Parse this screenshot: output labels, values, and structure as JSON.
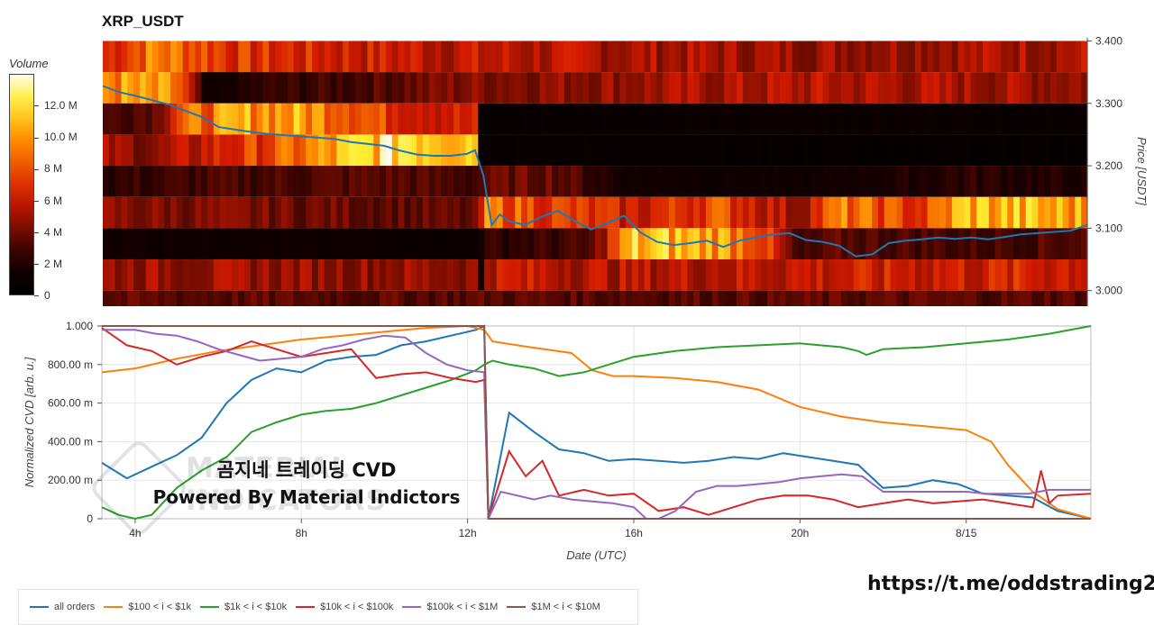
{
  "colors": {
    "all_orders": "#1f77b4",
    "b100_1k": "#ff7f0e",
    "b1k_10k": "#2ca02c",
    "b10k_100k": "#d62728",
    "b100k_1m": "#9467bd",
    "b1m_10m": "#8c564b",
    "heat_dark": "#1a0000",
    "heat_mid": "#d41a00",
    "heat_bright": "#ffee30"
  },
  "header": {
    "title": "XRP_USDT"
  },
  "colorbar": {
    "title": "Volume",
    "ticks": [
      "12.0 M",
      "10.0 M",
      "8 M",
      "6 M",
      "4 M",
      "2 M",
      "0"
    ],
    "tick_values": [
      12,
      10,
      8,
      6,
      4,
      2,
      0
    ],
    "max": 14
  },
  "chart_data": [
    {
      "type": "heatmap",
      "title": "XRP_USDT",
      "ylabel": "Price [USDT]",
      "y_ticks": [
        "3.400",
        "3.300",
        "3.200",
        "3.100",
        "3.000"
      ],
      "y_tick_values": [
        3.4,
        3.3,
        3.2,
        3.1,
        3.0
      ],
      "ylim": [
        2.975,
        3.405
      ],
      "xlim": [
        3.2,
        27.0
      ],
      "price_bins": [
        3.375,
        3.325,
        3.275,
        3.225,
        3.175,
        3.125,
        3.075,
        3.025,
        2.98
      ],
      "bin_edges": [
        3.4,
        3.35,
        3.3,
        3.25,
        3.2,
        3.15,
        3.1,
        3.05,
        3.0,
        2.975
      ],
      "volume_units": "M",
      "volume_by_bin_and_time": [
        {
          "bin": 3.375,
          "values": [
            [
              3.2,
              6.5
            ],
            [
              4.5,
              9.5
            ],
            [
              6.5,
              7.0
            ],
            [
              11.0,
              6.0
            ],
            [
              14.0,
              5.5
            ],
            [
              20.0,
              5.0
            ],
            [
              27.0,
              5.5
            ]
          ]
        },
        {
          "bin": 3.325,
          "values": [
            [
              3.2,
              10.0
            ],
            [
              5.0,
              9.0
            ],
            [
              5.7,
              1.0
            ],
            [
              7.0,
              2.5
            ],
            [
              9.0,
              3.0
            ],
            [
              12.0,
              4.5
            ],
            [
              16.0,
              5.0
            ],
            [
              20.0,
              5.5
            ],
            [
              27.0,
              5.0
            ]
          ]
        },
        {
          "bin": 3.275,
          "values": [
            [
              3.2,
              3.0
            ],
            [
              4.5,
              4.0
            ],
            [
              5.0,
              8.0
            ],
            [
              7.0,
              10.5
            ],
            [
              9.0,
              9.5
            ],
            [
              10.0,
              7.5
            ],
            [
              12.2,
              6.0
            ],
            [
              12.3,
              0.6
            ],
            [
              16.0,
              0.8
            ],
            [
              20.0,
              1.0
            ],
            [
              27.0,
              0.8
            ]
          ]
        },
        {
          "bin": 3.225,
          "values": [
            [
              3.2,
              5.0
            ],
            [
              4.5,
              4.5
            ],
            [
              6.0,
              6.5
            ],
            [
              7.5,
              8.0
            ],
            [
              9.0,
              10.5
            ],
            [
              10.5,
              13.0
            ],
            [
              12.2,
              12.0
            ],
            [
              12.3,
              0.8
            ],
            [
              16.0,
              0.6
            ],
            [
              20.0,
              0.5
            ],
            [
              27.0,
              0.5
            ]
          ]
        },
        {
          "bin": 3.175,
          "values": [
            [
              3.2,
              2.5
            ],
            [
              6.0,
              3.0
            ],
            [
              10.0,
              3.5
            ],
            [
              12.2,
              3.0
            ],
            [
              12.4,
              3.5
            ],
            [
              14.0,
              4.0
            ],
            [
              16.0,
              1.5
            ],
            [
              20.0,
              1.2
            ],
            [
              24.0,
              2.5
            ],
            [
              27.0,
              2.0
            ]
          ]
        },
        {
          "bin": 3.125,
          "values": [
            [
              3.2,
              4.5
            ],
            [
              8.0,
              4.0
            ],
            [
              12.2,
              3.5
            ],
            [
              12.5,
              9.0
            ],
            [
              14.0,
              7.5
            ],
            [
              16.0,
              6.0
            ],
            [
              18.0,
              8.0
            ],
            [
              20.0,
              5.0
            ],
            [
              21.0,
              9.0
            ],
            [
              23.0,
              7.0
            ],
            [
              24.0,
              11.0
            ],
            [
              27.0,
              10.0
            ]
          ]
        },
        {
          "bin": 3.075,
          "values": [
            [
              3.2,
              1.5
            ],
            [
              8.0,
              1.2
            ],
            [
              12.2,
              1.0
            ],
            [
              12.5,
              2.5
            ],
            [
              15.0,
              3.0
            ],
            [
              16.0,
              11.0
            ],
            [
              18.0,
              10.5
            ],
            [
              19.0,
              9.0
            ],
            [
              20.0,
              2.5
            ],
            [
              21.0,
              3.5
            ],
            [
              24.0,
              3.0
            ],
            [
              27.0,
              3.5
            ]
          ]
        },
        {
          "bin": 3.025,
          "values": [
            [
              3.2,
              5.0
            ],
            [
              12.2,
              4.8
            ],
            [
              12.3,
              0.5
            ],
            [
              12.5,
              6.0
            ],
            [
              16.0,
              5.5
            ],
            [
              20.0,
              6.0
            ],
            [
              27.0,
              6.5
            ]
          ]
        },
        {
          "bin": 2.98,
          "values": [
            [
              3.2,
              3.5
            ],
            [
              27.0,
              3.5
            ]
          ]
        }
      ],
      "price_series": {
        "name": "Price",
        "x": [
          3.2,
          3.6,
          4.0,
          4.4,
          4.8,
          5.2,
          5.6,
          6.0,
          6.4,
          6.8,
          7.2,
          7.6,
          8.0,
          8.4,
          8.8,
          9.2,
          9.6,
          10.0,
          10.4,
          10.8,
          11.2,
          11.6,
          12.0,
          12.2,
          12.4,
          12.6,
          12.8,
          13.0,
          13.4,
          13.8,
          14.2,
          14.6,
          15.0,
          15.4,
          15.8,
          16.2,
          16.6,
          17.0,
          17.4,
          17.8,
          18.2,
          18.6,
          19.0,
          19.4,
          19.8,
          20.2,
          20.6,
          21.0,
          21.4,
          21.8,
          22.2,
          22.6,
          23.0,
          23.4,
          23.8,
          24.2,
          24.6,
          25.0,
          25.4,
          25.8,
          26.2,
          26.6,
          27.0
        ],
        "y": [
          3.328,
          3.318,
          3.312,
          3.305,
          3.298,
          3.288,
          3.278,
          3.262,
          3.258,
          3.254,
          3.251,
          3.249,
          3.247,
          3.245,
          3.243,
          3.238,
          3.235,
          3.232,
          3.224,
          3.218,
          3.216,
          3.216,
          3.219,
          3.225,
          3.185,
          3.105,
          3.122,
          3.112,
          3.105,
          3.118,
          3.128,
          3.112,
          3.098,
          3.108,
          3.12,
          3.093,
          3.078,
          3.073,
          3.076,
          3.08,
          3.07,
          3.08,
          3.085,
          3.09,
          3.092,
          3.081,
          3.078,
          3.072,
          3.055,
          3.058,
          3.076,
          3.08,
          3.082,
          3.085,
          3.083,
          3.085,
          3.082,
          3.086,
          3.09,
          3.092,
          3.094,
          3.096,
          3.105
        ]
      }
    },
    {
      "type": "line",
      "xlabel": "Date (UTC)",
      "ylabel": "Normalized CVD [arb. u.]",
      "x_unit": "hours since 8/14 00:00 UTC",
      "x_ticks": [
        "4h",
        "8h",
        "12h",
        "16h",
        "20h",
        "8/15"
      ],
      "x_tick_values": [
        4,
        8,
        12,
        16,
        20,
        24
      ],
      "y_ticks": [
        "1.000",
        "800.00 m",
        "600.00 m",
        "400.00 m",
        "200.00 m",
        "0"
      ],
      "y_tick_values": [
        1.0,
        0.8,
        0.6,
        0.4,
        0.2,
        0.0
      ],
      "xlim": [
        3.2,
        27.0
      ],
      "ylim": [
        0.0,
        1.0
      ],
      "grid": true,
      "legend_position": "bottom",
      "series": [
        {
          "name": "all orders",
          "color_key": "all_orders",
          "x": [
            3.2,
            3.8,
            4.4,
            5.0,
            5.6,
            6.2,
            6.8,
            7.4,
            8.0,
            8.6,
            9.2,
            9.8,
            10.4,
            11.0,
            11.6,
            12.2,
            12.4,
            12.5,
            13.0,
            13.6,
            14.2,
            14.8,
            15.4,
            16.0,
            16.6,
            17.2,
            17.8,
            18.4,
            19.0,
            19.6,
            20.2,
            20.8,
            21.4,
            22.0,
            22.6,
            23.2,
            23.8,
            24.4,
            25.0,
            25.6,
            26.2,
            26.6,
            27.0
          ],
          "y": [
            0.29,
            0.21,
            0.27,
            0.33,
            0.42,
            0.6,
            0.72,
            0.78,
            0.76,
            0.82,
            0.84,
            0.85,
            0.9,
            0.92,
            0.95,
            0.98,
            1.0,
            0.0,
            0.55,
            0.45,
            0.36,
            0.34,
            0.3,
            0.31,
            0.3,
            0.29,
            0.3,
            0.32,
            0.31,
            0.34,
            0.32,
            0.3,
            0.28,
            0.16,
            0.17,
            0.2,
            0.18,
            0.13,
            0.12,
            0.11,
            0.04,
            0.02,
            0.0
          ]
        },
        {
          "name": "$100 < i < $1k",
          "color_key": "b100_1k",
          "x": [
            3.2,
            4.0,
            5.0,
            6.0,
            7.0,
            8.0,
            9.0,
            10.0,
            11.0,
            12.0,
            12.4,
            12.6,
            13.5,
            14.5,
            15.0,
            15.5,
            16.0,
            17.0,
            18.0,
            19.0,
            20.0,
            21.0,
            22.0,
            23.0,
            24.0,
            24.6,
            25.0,
            25.6,
            26.2,
            27.0
          ],
          "y": [
            0.76,
            0.78,
            0.83,
            0.87,
            0.9,
            0.93,
            0.95,
            0.97,
            0.99,
            1.0,
            0.98,
            0.92,
            0.89,
            0.86,
            0.77,
            0.74,
            0.74,
            0.73,
            0.71,
            0.67,
            0.58,
            0.53,
            0.5,
            0.48,
            0.46,
            0.4,
            0.28,
            0.14,
            0.05,
            0.0
          ]
        },
        {
          "name": "$1k < i < $10k",
          "color_key": "b1k_10k",
          "x": [
            3.2,
            3.6,
            4.0,
            4.4,
            5.0,
            5.6,
            6.2,
            6.8,
            7.4,
            8.0,
            8.6,
            9.2,
            9.8,
            10.4,
            11.0,
            11.6,
            12.2,
            12.4,
            12.6,
            13.0,
            13.6,
            14.2,
            14.8,
            15.4,
            16.0,
            17.0,
            18.0,
            19.0,
            20.0,
            21.0,
            21.4,
            21.6,
            22.0,
            23.0,
            24.0,
            25.0,
            26.0,
            27.0
          ],
          "y": [
            0.06,
            0.02,
            0.0,
            0.02,
            0.16,
            0.25,
            0.32,
            0.45,
            0.5,
            0.54,
            0.56,
            0.57,
            0.6,
            0.64,
            0.68,
            0.72,
            0.77,
            0.8,
            0.82,
            0.8,
            0.78,
            0.74,
            0.76,
            0.8,
            0.84,
            0.87,
            0.89,
            0.9,
            0.91,
            0.89,
            0.87,
            0.85,
            0.88,
            0.89,
            0.91,
            0.93,
            0.96,
            1.0
          ]
        },
        {
          "name": "$10k < i < $100k",
          "color_key": "b10k_100k",
          "x": [
            3.2,
            3.8,
            4.4,
            5.0,
            5.6,
            6.2,
            6.8,
            7.4,
            8.0,
            8.6,
            9.2,
            9.8,
            10.4,
            11.0,
            11.6,
            12.2,
            12.4,
            12.5,
            13.0,
            13.4,
            13.8,
            14.2,
            14.8,
            15.4,
            16.0,
            16.6,
            17.2,
            17.8,
            18.4,
            19.0,
            19.6,
            20.2,
            20.8,
            21.4,
            22.0,
            22.6,
            23.2,
            23.8,
            24.4,
            25.0,
            25.6,
            25.8,
            26.0,
            26.2,
            27.0
          ],
          "y": [
            0.99,
            0.9,
            0.87,
            0.8,
            0.84,
            0.87,
            0.92,
            0.88,
            0.84,
            0.86,
            0.88,
            0.73,
            0.75,
            0.76,
            0.73,
            0.71,
            0.72,
            0.0,
            0.35,
            0.22,
            0.3,
            0.12,
            0.15,
            0.12,
            0.13,
            0.04,
            0.06,
            0.02,
            0.06,
            0.1,
            0.12,
            0.12,
            0.1,
            0.06,
            0.08,
            0.1,
            0.08,
            0.09,
            0.1,
            0.08,
            0.06,
            0.25,
            0.08,
            0.12,
            0.13
          ]
        },
        {
          "name": "$100k < i < $1M",
          "color_key": "b100k_1m",
          "x": [
            3.2,
            4.0,
            4.5,
            5.0,
            5.5,
            6.0,
            6.5,
            7.0,
            7.5,
            8.0,
            8.5,
            9.0,
            9.5,
            10.0,
            10.5,
            11.0,
            11.5,
            12.0,
            12.4,
            12.5,
            12.8,
            13.2,
            13.6,
            14.0,
            14.5,
            15.0,
            15.5,
            16.0,
            16.3,
            16.6,
            17.0,
            17.5,
            18.0,
            18.5,
            19.0,
            19.5,
            20.0,
            20.5,
            21.0,
            21.5,
            22.0,
            22.5,
            23.0,
            23.5,
            24.0,
            24.5,
            25.0,
            25.5,
            26.0,
            26.5,
            27.0
          ],
          "y": [
            0.98,
            0.98,
            0.96,
            0.95,
            0.92,
            0.88,
            0.85,
            0.82,
            0.83,
            0.84,
            0.88,
            0.9,
            0.93,
            0.95,
            0.94,
            0.86,
            0.8,
            0.77,
            0.76,
            0.0,
            0.14,
            0.12,
            0.1,
            0.12,
            0.1,
            0.09,
            0.08,
            0.06,
            0.0,
            0.0,
            0.04,
            0.14,
            0.17,
            0.17,
            0.18,
            0.19,
            0.21,
            0.22,
            0.23,
            0.22,
            0.14,
            0.14,
            0.14,
            0.14,
            0.14,
            0.13,
            0.13,
            0.13,
            0.15,
            0.15,
            0.15
          ]
        },
        {
          "name": "$1M < i < $10M",
          "color_key": "b1m_10m",
          "x": [
            3.2,
            12.4,
            12.5,
            13.0,
            14.0,
            16.0,
            18.0,
            20.0,
            22.0,
            24.0,
            27.0
          ],
          "y": [
            1.0,
            1.0,
            0.0,
            0.0,
            0.0,
            0.0,
            0.0,
            0.0,
            0.0,
            0.0,
            0.0
          ]
        }
      ]
    }
  ],
  "overlay": {
    "line1": "곰지네 트레이딩 CVD",
    "line2": "Powered By Material Indictors"
  },
  "watermark": {
    "line1": "MATERIAL",
    "line2": "INDICATORS"
  },
  "footer": {
    "telegram": "https://t.me/oddstrading2"
  }
}
